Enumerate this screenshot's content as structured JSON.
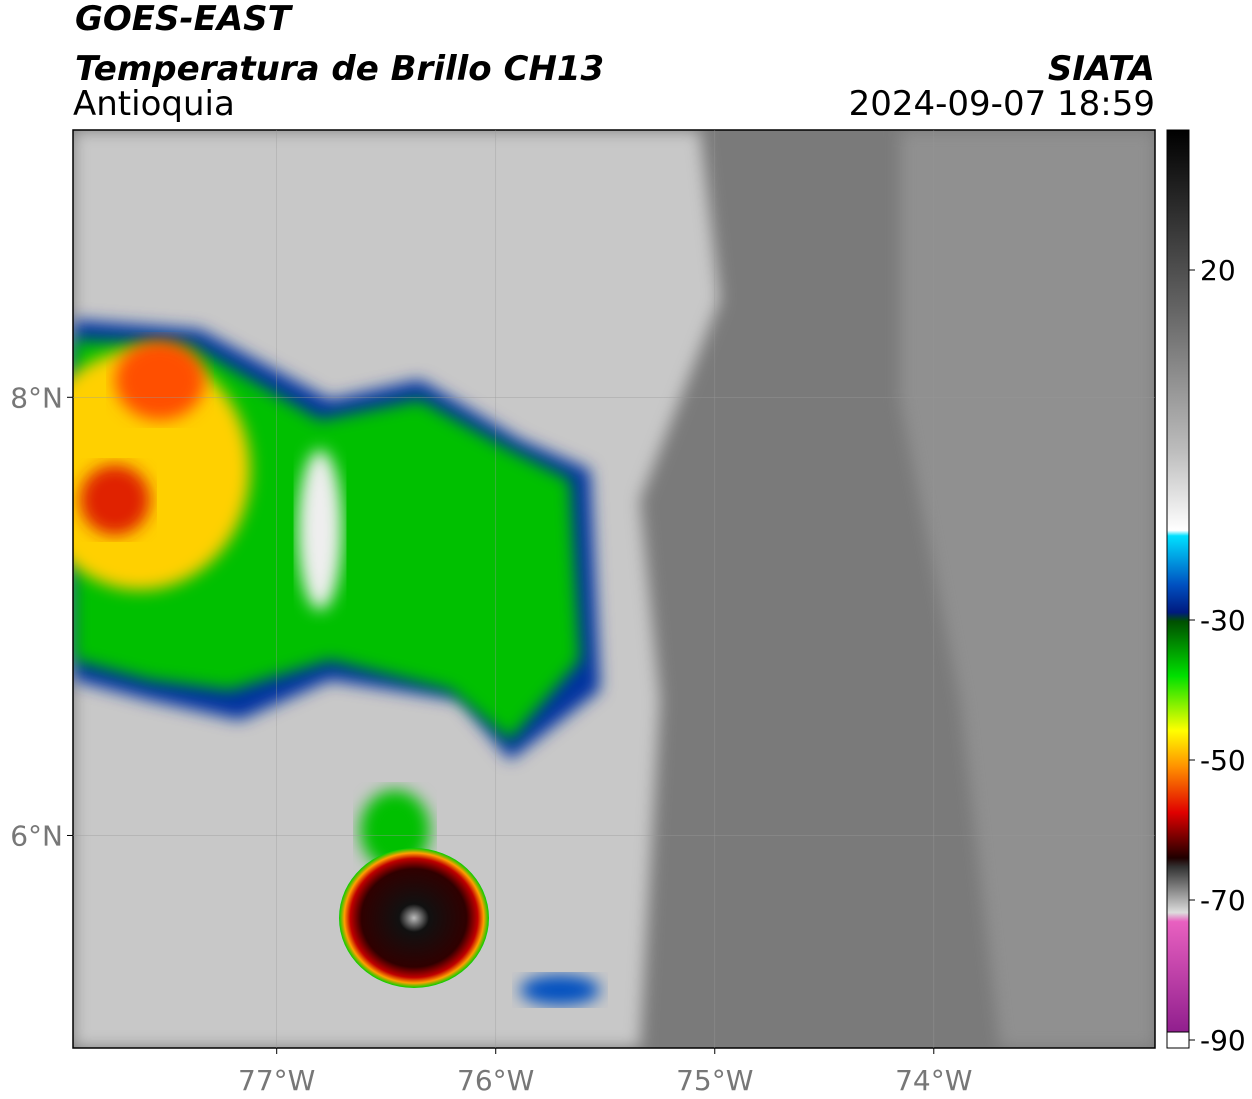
{
  "header": {
    "title": "GOES-EAST",
    "subtitle": "Temperatura de Brillo CH13",
    "region": "Antioquia",
    "source": "SIATA",
    "datetime": "2024-09-07 18:59"
  },
  "map": {
    "xlim": [
      -77.93,
      -72.99
    ],
    "ylim": [
      5.03,
      9.22
    ],
    "xticks": [
      {
        "value": -77,
        "label": "77°W"
      },
      {
        "value": -76,
        "label": "76°W"
      },
      {
        "value": -75,
        "label": "75°W"
      },
      {
        "value": -74,
        "label": "74°W"
      }
    ],
    "yticks": [
      {
        "value": 6,
        "label": "6°N"
      },
      {
        "value": 8,
        "label": "8°N"
      }
    ],
    "grid": true
  },
  "colorbar": {
    "lim": [
      -90,
      40
    ],
    "ticks": [
      -90,
      -70,
      -50,
      -30,
      20
    ]
  }
}
